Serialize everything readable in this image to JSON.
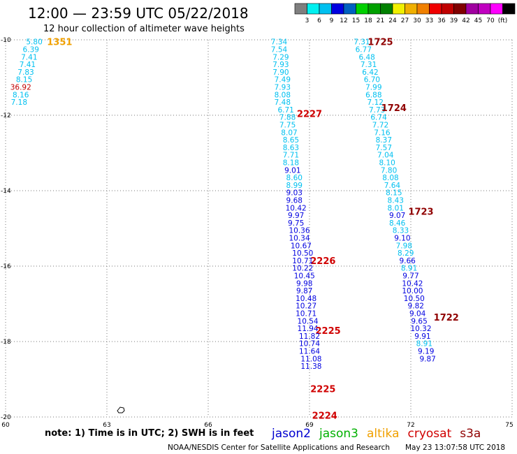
{
  "title": "12:00 — 23:59 UTC 05/22/2018",
  "subtitle": "12 hour collection of altimeter wave heights",
  "colorbar": {
    "colors": [
      "#7f7f7f",
      "#00f0f0",
      "#00c0f0",
      "#0000e0",
      "#0060c0",
      "#00d000",
      "#00a000",
      "#008000",
      "#f0f000",
      "#f0b000",
      "#f08000",
      "#f00000",
      "#c00000",
      "#800000",
      "#a000a0",
      "#c000c0",
      "#ff00ff",
      "#000000"
    ],
    "labels": [
      "3",
      "6",
      "9",
      "12",
      "15",
      "18",
      "21",
      "24",
      "27",
      "30",
      "33",
      "36",
      "39",
      "42",
      "45",
      "70",
      "(ft)"
    ]
  },
  "footer": {
    "note": "note:  1) Time is in UTC;  2) SWH is in feet",
    "credit": "NOAA/NESDIS Center for Satellite Applications and Research",
    "timestamp": "May 23 13:07:58 UTC 2018"
  },
  "legend": [
    {
      "name": "jason2",
      "color": "#0000d0"
    },
    {
      "name": "jason3",
      "color": "#00b000"
    },
    {
      "name": "altika",
      "color": "#f0a000"
    },
    {
      "name": "cryosat",
      "color": "#d00000"
    },
    {
      "name": "s3a",
      "color": "#900000"
    }
  ],
  "chart_data": {
    "type": "scatter",
    "title": "12:00 — 23:59 UTC 05/22/2018",
    "subtitle": "12 hour collection of altimeter wave heights",
    "xlim": [
      60,
      75
    ],
    "ylim": [
      -20,
      -10
    ],
    "xticks": [
      60,
      63,
      66,
      69,
      72,
      75
    ],
    "yticks": [
      -10,
      -12,
      -14,
      -16,
      -18,
      -20
    ],
    "grid": true,
    "series": [
      {
        "name": "1351",
        "color": "#f0a000",
        "label": {
          "text": "1351",
          "x": 61.6,
          "y": -10.05
        },
        "points": [
          {
            "x": 60.85,
            "y": -10.05,
            "v": "5.80",
            "c": "#00c0f0"
          },
          {
            "x": 60.75,
            "y": -10.25,
            "v": "6.39",
            "c": "#00c0f0"
          },
          {
            "x": 60.7,
            "y": -10.45,
            "v": "7.41",
            "c": "#00c0f0"
          },
          {
            "x": 60.65,
            "y": -10.65,
            "v": "7.41",
            "c": "#00c0f0"
          },
          {
            "x": 60.6,
            "y": -10.85,
            "v": "7.83",
            "c": "#00c0f0"
          },
          {
            "x": 60.55,
            "y": -11.05,
            "v": "8.15",
            "c": "#00c0f0"
          },
          {
            "x": 60.45,
            "y": -11.25,
            "v": "36.92",
            "c": "#c00000"
          },
          {
            "x": 60.45,
            "y": -11.45,
            "v": "8.16",
            "c": "#00c0f0"
          },
          {
            "x": 60.4,
            "y": -11.65,
            "v": "7.18",
            "c": "#00c0f0"
          }
        ]
      },
      {
        "name": "2227",
        "color": "#d00000",
        "label": {
          "text": "2227",
          "x": 69.0,
          "y": -11.95
        },
        "points": [
          {
            "x": 68.1,
            "y": -10.05,
            "v": "7.34",
            "c": "#00c0f0"
          },
          {
            "x": 68.1,
            "y": -10.25,
            "v": "7.54",
            "c": "#00c0f0"
          },
          {
            "x": 68.15,
            "y": -10.45,
            "v": "7.29",
            "c": "#00c0f0"
          },
          {
            "x": 68.15,
            "y": -10.65,
            "v": "7.93",
            "c": "#00c0f0"
          },
          {
            "x": 68.15,
            "y": -10.85,
            "v": "7.90",
            "c": "#00c0f0"
          },
          {
            "x": 68.2,
            "y": -11.05,
            "v": "7.49",
            "c": "#00c0f0"
          },
          {
            "x": 68.2,
            "y": -11.25,
            "v": "7.93",
            "c": "#00c0f0"
          },
          {
            "x": 68.2,
            "y": -11.45,
            "v": "8.08",
            "c": "#00c0f0"
          },
          {
            "x": 68.2,
            "y": -11.65,
            "v": "7.48",
            "c": "#00c0f0"
          }
        ]
      },
      {
        "name": "2226",
        "color": "#d00000",
        "label": {
          "text": "2226",
          "x": 69.4,
          "y": -15.85
        },
        "points": [
          {
            "x": 68.3,
            "y": -11.85,
            "v": "6.71",
            "c": "#00c0f0"
          },
          {
            "x": 68.35,
            "y": -12.05,
            "v": "7.88",
            "c": "#00c0f0"
          },
          {
            "x": 68.35,
            "y": -12.25,
            "v": "7.75",
            "c": "#00c0f0"
          },
          {
            "x": 68.4,
            "y": -12.45,
            "v": "8.07",
            "c": "#00c0f0"
          },
          {
            "x": 68.45,
            "y": -12.65,
            "v": "8.65",
            "c": "#00c0f0"
          },
          {
            "x": 68.45,
            "y": -12.85,
            "v": "8.63",
            "c": "#00c0f0"
          },
          {
            "x": 68.45,
            "y": -13.05,
            "v": "7.71",
            "c": "#00c0f0"
          },
          {
            "x": 68.45,
            "y": -13.25,
            "v": "8.18",
            "c": "#00c0f0"
          },
          {
            "x": 68.5,
            "y": -13.45,
            "v": "9.01",
            "c": "#0000e0"
          },
          {
            "x": 68.55,
            "y": -13.65,
            "v": "8.60",
            "c": "#00c0f0"
          },
          {
            "x": 68.55,
            "y": -13.85,
            "v": "8.99",
            "c": "#00c0f0"
          },
          {
            "x": 68.55,
            "y": -14.05,
            "v": "9.03",
            "c": "#0000e0"
          },
          {
            "x": 68.55,
            "y": -14.25,
            "v": "9.68",
            "c": "#0000e0"
          },
          {
            "x": 68.6,
            "y": -14.45,
            "v": "10.42",
            "c": "#0000e0"
          },
          {
            "x": 68.6,
            "y": -14.65,
            "v": "9.97",
            "c": "#0000e0"
          },
          {
            "x": 68.6,
            "y": -14.85,
            "v": "9.75",
            "c": "#0000e0"
          }
        ]
      },
      {
        "name": "2225",
        "color": "#d00000",
        "label": {
          "text": "2225",
          "x": 69.55,
          "y": -17.7
        },
        "points": [
          {
            "x": 68.7,
            "y": -15.05,
            "v": "10.36",
            "c": "#0000e0"
          },
          {
            "x": 68.7,
            "y": -15.25,
            "v": "10.34",
            "c": "#0000e0"
          },
          {
            "x": 68.75,
            "y": -15.45,
            "v": "10.67",
            "c": "#0000e0"
          },
          {
            "x": 68.8,
            "y": -15.65,
            "v": "10.50",
            "c": "#0000e0"
          },
          {
            "x": 68.8,
            "y": -15.85,
            "v": "10.71",
            "c": "#0000e0"
          },
          {
            "x": 68.8,
            "y": -16.05,
            "v": "10.22",
            "c": "#0000e0"
          },
          {
            "x": 68.85,
            "y": -16.25,
            "v": "10.45",
            "c": "#0000e0"
          },
          {
            "x": 68.85,
            "y": -16.45,
            "v": "9.98",
            "c": "#0000e0"
          },
          {
            "x": 68.85,
            "y": -16.65,
            "v": "9.87",
            "c": "#0000e0"
          },
          {
            "x": 68.9,
            "y": -16.85,
            "v": "10.48",
            "c": "#0000e0"
          },
          {
            "x": 68.9,
            "y": -17.05,
            "v": "10.27",
            "c": "#0000e0"
          },
          {
            "x": 68.9,
            "y": -17.25,
            "v": "10.71",
            "c": "#0000e0"
          },
          {
            "x": 68.95,
            "y": -17.45,
            "v": "10.54",
            "c": "#0000e0"
          },
          {
            "x": 68.95,
            "y": -17.65,
            "v": "11.94",
            "c": "#0000e0"
          }
        ]
      },
      {
        "name": "2225",
        "color": "#d00000",
        "label": {
          "text": "2225",
          "x": 69.4,
          "y": -19.25
        },
        "points": [
          {
            "x": 69.0,
            "y": -17.85,
            "v": "11.82",
            "c": "#0000e0"
          },
          {
            "x": 69.0,
            "y": -18.05,
            "v": "10.74",
            "c": "#0000e0"
          }
        ]
      },
      {
        "name": "2224",
        "color": "#d00000",
        "label": {
          "text": "2224",
          "x": 69.45,
          "y": -19.95
        },
        "points": [
          {
            "x": 69.0,
            "y": -18.25,
            "v": "11.64",
            "c": "#0000e0"
          },
          {
            "x": 69.05,
            "y": -18.45,
            "v": "11.08",
            "c": "#0000e0"
          },
          {
            "x": 69.05,
            "y": -18.65,
            "v": "11.38",
            "c": "#0000e0"
          }
        ]
      },
      {
        "name": "1725",
        "color": "#900000",
        "label": {
          "text": "1725",
          "x": 71.1,
          "y": -10.05
        },
        "points": [
          {
            "x": 70.55,
            "y": -10.05,
            "v": "7.31",
            "c": "#00c0f0"
          },
          {
            "x": 70.6,
            "y": -10.25,
            "v": "6.77",
            "c": "#00c0f0"
          },
          {
            "x": 70.7,
            "y": -10.45,
            "v": "6.48",
            "c": "#00c0f0"
          },
          {
            "x": 70.75,
            "y": -10.65,
            "v": "7.31",
            "c": "#00c0f0"
          },
          {
            "x": 70.8,
            "y": -10.85,
            "v": "6.42",
            "c": "#00c0f0"
          },
          {
            "x": 70.85,
            "y": -11.05,
            "v": "6.70",
            "c": "#00c0f0"
          },
          {
            "x": 70.9,
            "y": -11.25,
            "v": "7.99",
            "c": "#00c0f0"
          },
          {
            "x": 70.9,
            "y": -11.45,
            "v": "6.88",
            "c": "#00c0f0"
          }
        ]
      },
      {
        "name": "1724",
        "color": "#900000",
        "label": {
          "text": "1724",
          "x": 71.5,
          "y": -11.8
        },
        "points": [
          {
            "x": 70.95,
            "y": -11.65,
            "v": "7.12",
            "c": "#00c0f0"
          },
          {
            "x": 71.0,
            "y": -11.85,
            "v": "7.73",
            "c": "#00c0f0"
          },
          {
            "x": 71.05,
            "y": -12.05,
            "v": "6.74",
            "c": "#00c0f0"
          },
          {
            "x": 71.1,
            "y": -12.25,
            "v": "7.72",
            "c": "#00c0f0"
          },
          {
            "x": 71.15,
            "y": -12.45,
            "v": "7.16",
            "c": "#00c0f0"
          },
          {
            "x": 71.2,
            "y": -12.65,
            "v": "8.37",
            "c": "#00c0f0"
          },
          {
            "x": 71.2,
            "y": -12.85,
            "v": "7.57",
            "c": "#00c0f0"
          },
          {
            "x": 71.25,
            "y": -13.05,
            "v": "7.04",
            "c": "#00c0f0"
          },
          {
            "x": 71.3,
            "y": -13.25,
            "v": "8.10",
            "c": "#00c0f0"
          },
          {
            "x": 71.35,
            "y": -13.45,
            "v": "7.80",
            "c": "#00c0f0"
          },
          {
            "x": 71.4,
            "y": -13.65,
            "v": "8.08",
            "c": "#00c0f0"
          },
          {
            "x": 71.45,
            "y": -13.85,
            "v": "7.64",
            "c": "#00c0f0"
          },
          {
            "x": 71.5,
            "y": -14.05,
            "v": "8.15",
            "c": "#00c0f0"
          },
          {
            "x": 71.55,
            "y": -14.25,
            "v": "8.43",
            "c": "#00c0f0"
          },
          {
            "x": 71.55,
            "y": -14.45,
            "v": "8.01",
            "c": "#00c0f0"
          }
        ]
      },
      {
        "name": "1723",
        "color": "#900000",
        "label": {
          "text": "1723",
          "x": 72.3,
          "y": -14.55
        },
        "points": [
          {
            "x": 71.6,
            "y": -14.65,
            "v": "9.07",
            "c": "#0000e0"
          },
          {
            "x": 71.6,
            "y": -14.85,
            "v": "8.46",
            "c": "#00c0f0"
          },
          {
            "x": 71.7,
            "y": -15.05,
            "v": "8.33",
            "c": "#00c0f0"
          },
          {
            "x": 71.75,
            "y": -15.25,
            "v": "9.10",
            "c": "#0000e0"
          },
          {
            "x": 71.8,
            "y": -15.45,
            "v": "7.98",
            "c": "#00c0f0"
          },
          {
            "x": 71.85,
            "y": -15.65,
            "v": "8.29",
            "c": "#00c0f0"
          },
          {
            "x": 71.9,
            "y": -15.85,
            "v": "9.66",
            "c": "#0000e0"
          },
          {
            "x": 71.95,
            "y": -16.05,
            "v": "8.91",
            "c": "#00c0f0"
          },
          {
            "x": 72.0,
            "y": -16.25,
            "v": "9.77",
            "c": "#0000e0"
          },
          {
            "x": 72.05,
            "y": -16.45,
            "v": "10.42",
            "c": "#0000e0"
          },
          {
            "x": 72.05,
            "y": -16.65,
            "v": "10.00",
            "c": "#0000e0"
          },
          {
            "x": 72.1,
            "y": -16.85,
            "v": "10.50",
            "c": "#0000e0"
          },
          {
            "x": 72.15,
            "y": -17.05,
            "v": "9.82",
            "c": "#0000e0"
          },
          {
            "x": 72.2,
            "y": -17.25,
            "v": "9.04",
            "c": "#0000e0"
          }
        ]
      },
      {
        "name": "1722",
        "color": "#900000",
        "label": {
          "text": "1722",
          "x": 73.05,
          "y": -17.35
        },
        "points": [
          {
            "x": 72.25,
            "y": -17.45,
            "v": "9.65",
            "c": "#0000e0"
          },
          {
            "x": 72.3,
            "y": -17.65,
            "v": "10.32",
            "c": "#0000e0"
          },
          {
            "x": 72.35,
            "y": -17.85,
            "v": "9.91",
            "c": "#0000e0"
          },
          {
            "x": 72.4,
            "y": -18.05,
            "v": "8.91",
            "c": "#00c0f0"
          },
          {
            "x": 72.45,
            "y": -18.25,
            "v": "9.19",
            "c": "#0000e0"
          },
          {
            "x": 72.5,
            "y": -18.45,
            "v": "9.87",
            "c": "#0000e0"
          }
        ]
      }
    ]
  }
}
